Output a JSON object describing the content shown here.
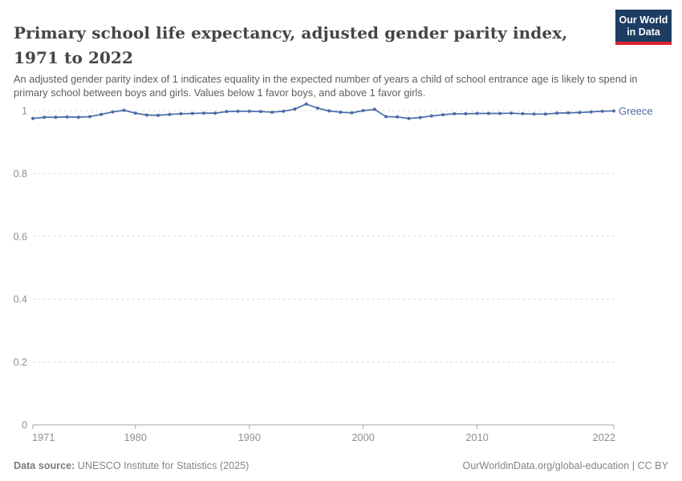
{
  "header": {
    "title": "Primary school life expectancy, adjusted gender parity index, 1971 to 2022",
    "subtitle": "An adjusted gender parity index of 1 indicates equality in the expected number of years a child of school entrance age is likely to spend in primary school between boys and girls. Values below 1 favor boys, and above 1 favor girls."
  },
  "logo": {
    "line1": "Our World",
    "line2": "in Data",
    "bg_color": "#1d3d63",
    "accent_color": "#dc2335"
  },
  "chart_data": {
    "type": "line",
    "title": "Primary school life expectancy, adjusted gender parity index, 1971 to 2022",
    "xlabel": "",
    "ylabel": "",
    "grid": "horizontal-dashed",
    "legend_position": "end-of-line-label",
    "xlim": [
      1971,
      2022
    ],
    "ylim": [
      0,
      1.05
    ],
    "x_ticks": [
      1971,
      1980,
      1990,
      2000,
      2010,
      2022
    ],
    "y_ticks": [
      0,
      0.2,
      0.4,
      0.6,
      0.8,
      1
    ],
    "y_tick_labels": [
      "0",
      "0.2",
      "0.4",
      "0.6",
      "0.8",
      "1"
    ],
    "series": [
      {
        "name": "Greece",
        "color": "#4a6ba8",
        "x": [
          1971,
          1972,
          1973,
          1974,
          1975,
          1976,
          1977,
          1978,
          1979,
          1980,
          1981,
          1982,
          1983,
          1984,
          1985,
          1986,
          1987,
          1988,
          1989,
          1990,
          1991,
          1992,
          1993,
          1994,
          1995,
          1996,
          1997,
          1998,
          1999,
          2000,
          2001,
          2002,
          2003,
          2004,
          2005,
          2006,
          2007,
          2008,
          2009,
          2010,
          2011,
          2012,
          2013,
          2014,
          2015,
          2016,
          2017,
          2018,
          2019,
          2020,
          2021,
          2022
        ],
        "values": [
          0.975,
          0.979,
          0.979,
          0.98,
          0.979,
          0.981,
          0.988,
          0.996,
          1.001,
          0.992,
          0.986,
          0.985,
          0.988,
          0.99,
          0.991,
          0.992,
          0.992,
          0.997,
          0.998,
          0.998,
          0.997,
          0.995,
          0.998,
          1.005,
          1.021,
          1.008,
          0.999,
          0.995,
          0.993,
          1.0,
          1.004,
          0.981,
          0.98,
          0.975,
          0.978,
          0.983,
          0.987,
          0.99,
          0.99,
          0.991,
          0.991,
          0.991,
          0.992,
          0.99,
          0.989,
          0.989,
          0.992,
          0.993,
          0.994,
          0.996,
          0.998,
          0.999
        ]
      }
    ],
    "colors": {
      "gridline": "#d9d9d9",
      "axis": "#a3a3a3",
      "tick_label": "#8f8f8f"
    }
  },
  "footer": {
    "source_label": "Data source:",
    "source_text": " UNESCO Institute for Statistics (2025)",
    "attribution": "OurWorldinData.org/global-education | CC BY"
  }
}
